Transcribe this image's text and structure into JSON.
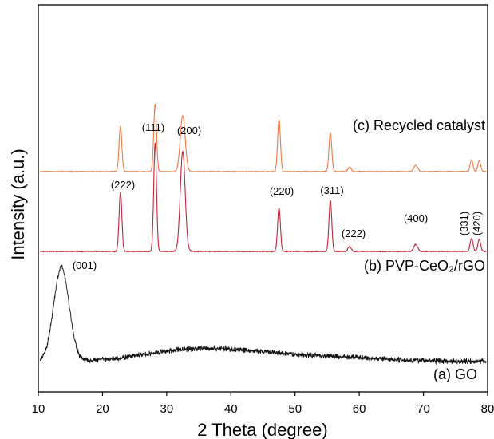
{
  "chart_data": {
    "type": "line",
    "xlabel": "2 Theta (degree)",
    "ylabel": "Intensity (a.u.)",
    "xlim": [
      10,
      80
    ],
    "xticks": [
      10,
      20,
      30,
      40,
      50,
      60,
      70,
      80
    ],
    "y_tick_labels": false,
    "grid": false,
    "series": [
      {
        "name": "(c) Recycled catalyst",
        "color": "#f07a45",
        "baseline": 0.82,
        "noise": 0.006,
        "peaks": [
          {
            "x": 22.8,
            "h": 0.82,
            "w": 0.22
          },
          {
            "x": 28.2,
            "h": 1.25,
            "w": 0.22
          },
          {
            "x": 32.5,
            "h": 1.03,
            "w": 0.38
          },
          {
            "x": 47.5,
            "h": 0.96,
            "w": 0.22
          },
          {
            "x": 55.5,
            "h": 0.71,
            "w": 0.22
          },
          {
            "x": 58.5,
            "h": 0.08,
            "w": 0.25
          },
          {
            "x": 68.8,
            "h": 0.12,
            "w": 0.3
          },
          {
            "x": 77.5,
            "h": 0.22,
            "w": 0.22
          },
          {
            "x": 78.7,
            "h": 0.2,
            "w": 0.22
          }
        ]
      },
      {
        "name": "(b) PVP-CeO₂/rGO",
        "color": "#c0283a",
        "baseline": 0.0,
        "noise": 0.006,
        "peaks": [
          {
            "x": 22.8,
            "h": 1.08,
            "w": 0.22
          },
          {
            "x": 28.2,
            "h": 2.0,
            "w": 0.22
          },
          {
            "x": 32.5,
            "h": 1.84,
            "w": 0.38
          },
          {
            "x": 47.5,
            "h": 0.8,
            "w": 0.22
          },
          {
            "x": 55.5,
            "h": 0.94,
            "w": 0.22
          },
          {
            "x": 58.5,
            "h": 0.09,
            "w": 0.25
          },
          {
            "x": 68.8,
            "h": 0.13,
            "w": 0.3
          },
          {
            "x": 77.5,
            "h": 0.24,
            "w": 0.22
          },
          {
            "x": 78.7,
            "h": 0.22,
            "w": 0.22
          }
        ]
      },
      {
        "name": "(a) GO",
        "color": "#111111",
        "baseline": 0.0,
        "noise": 0.03,
        "peaks": [
          {
            "x": 13.6,
            "h": 1.73,
            "w": 1.2
          },
          {
            "x": 35.0,
            "h": 0.22,
            "w": 8.0
          },
          {
            "x": 52.0,
            "h": 0.1,
            "w": 10.0
          }
        ]
      }
    ],
    "peak_labels": [
      {
        "text": "(222)",
        "x": 22.8
      },
      {
        "text": "(111)",
        "x": 28.2
      },
      {
        "text": "(200)",
        "x": 32.5
      },
      {
        "text": "(220)",
        "x": 47.5
      },
      {
        "text": "(311)",
        "x": 55.5
      },
      {
        "text": "(222)",
        "x": 58.5
      },
      {
        "text": "(400)",
        "x": 68.8
      },
      {
        "text": "(331)",
        "x": 77.5,
        "rotated": true
      },
      {
        "text": "(420)",
        "x": 78.7,
        "rotated": true
      },
      {
        "text": "(001)",
        "x": 13.6
      }
    ]
  }
}
